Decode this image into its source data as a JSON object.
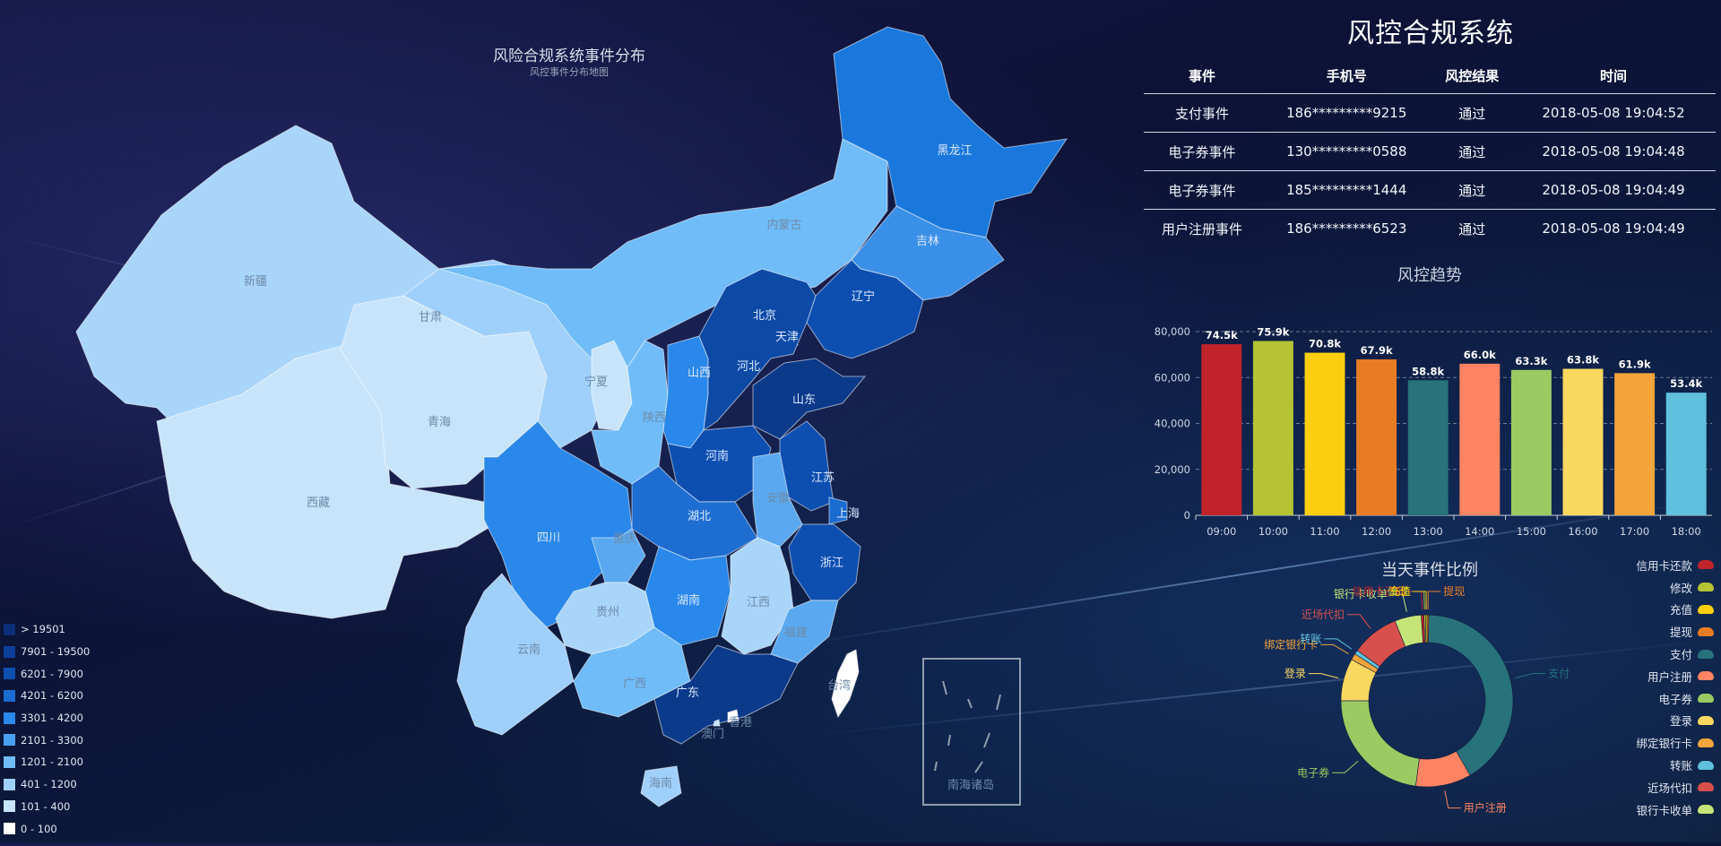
{
  "map": {
    "title": "风险合规系统事件分布",
    "subtitle": "风控事件分布地图",
    "provinces": [
      {
        "name": "新疆",
        "color": "#a9d5fb"
      },
      {
        "name": "西藏",
        "color": "#c7e4fb"
      },
      {
        "name": "青海",
        "color": "#c7e4fb"
      },
      {
        "name": "甘肃",
        "color": "#9fd0fb"
      },
      {
        "name": "内蒙古",
        "color": "#6fbcf8"
      },
      {
        "name": "黑龙江",
        "color": "#1a78dc"
      },
      {
        "name": "吉林",
        "color": "#3a8fe8"
      },
      {
        "name": "辽宁",
        "color": "#0d4fb0"
      },
      {
        "name": "宁夏",
        "color": "#c7e4fb"
      },
      {
        "name": "陕西",
        "color": "#6fbcf8"
      },
      {
        "name": "山西",
        "color": "#2a88ea"
      },
      {
        "name": "北京",
        "color": "#0b3a8a"
      },
      {
        "name": "天津",
        "color": "#1a6cd0"
      },
      {
        "name": "河北",
        "color": "#0d4aa6"
      },
      {
        "name": "山东",
        "color": "#0b3a8a"
      },
      {
        "name": "河南",
        "color": "#0d4fb0"
      },
      {
        "name": "江苏",
        "color": "#0d4fb0"
      },
      {
        "name": "上海",
        "color": "#1a6cd0"
      },
      {
        "name": "安徽",
        "color": "#5aa9f0"
      },
      {
        "name": "湖北",
        "color": "#1e6ed2"
      },
      {
        "name": "浙江",
        "color": "#0d4fb0"
      },
      {
        "name": "四川",
        "color": "#2a88ea"
      },
      {
        "name": "重庆",
        "color": "#5aa9f0"
      },
      {
        "name": "湖南",
        "color": "#2a88ea"
      },
      {
        "name": "江西",
        "color": "#a9d5fb"
      },
      {
        "name": "福建",
        "color": "#5aa9f0"
      },
      {
        "name": "贵州",
        "color": "#a9d5fb"
      },
      {
        "name": "云南",
        "color": "#9fd0fb"
      },
      {
        "name": "广西",
        "color": "#6fbcf8"
      },
      {
        "name": "广东",
        "color": "#0b3a8a"
      },
      {
        "name": "香港",
        "color": "#ffffff"
      },
      {
        "name": "澳门",
        "color": "#c7e4fb"
      },
      {
        "name": "海南",
        "color": "#9fd0fb"
      },
      {
        "name": "台湾",
        "color": "#ffffff"
      },
      {
        "name": "南海诸岛",
        "color": "#ffffff"
      }
    ],
    "legend": [
      {
        "label": "> 19501",
        "color": "#0b2f78"
      },
      {
        "label": "7901 - 19500",
        "color": "#0d3f98"
      },
      {
        "label": "6201 - 7900",
        "color": "#0d4fb0"
      },
      {
        "label": "4201 - 6200",
        "color": "#1a6cd0"
      },
      {
        "label": "3301 - 4200",
        "color": "#2a88ea"
      },
      {
        "label": "2101 - 3300",
        "color": "#4aa0f0"
      },
      {
        "label": "1201 - 2100",
        "color": "#6fbcf8"
      },
      {
        "label": "401 - 1200",
        "color": "#9fd0fb"
      },
      {
        "label": "101 - 400",
        "color": "#c7e4fb"
      },
      {
        "label": "0 - 100",
        "color": "#ffffff"
      }
    ]
  },
  "panel": {
    "title": "风控合规系统"
  },
  "table": {
    "headers": [
      "事件",
      "手机号",
      "风控结果",
      "时间"
    ],
    "rows": [
      [
        "支付事件",
        "186*********9215",
        "通过",
        "2018-05-08 19:04:52"
      ],
      [
        "电子券事件",
        "130*********0588",
        "通过",
        "2018-05-08 19:04:48"
      ],
      [
        "电子券事件",
        "185*********1444",
        "通过",
        "2018-05-08 19:04:49"
      ],
      [
        "用户注册事件",
        "186*********6523",
        "通过",
        "2018-05-08 19:04:49"
      ]
    ]
  },
  "chart_data": [
    {
      "type": "bar",
      "title": "风控趋势",
      "categories": [
        "09:00",
        "10:00",
        "11:00",
        "12:00",
        "13:00",
        "14:00",
        "15:00",
        "16:00",
        "17:00",
        "18:00"
      ],
      "values": [
        74500,
        75900,
        70800,
        67900,
        58800,
        66000,
        63300,
        63800,
        61900,
        53400
      ],
      "value_labels": [
        "74.5k",
        "75.9k",
        "70.8k",
        "67.9k",
        "58.8k",
        "66.0k",
        "63.3k",
        "63.8k",
        "61.9k",
        "53.4k"
      ],
      "colors": [
        "#c1232b",
        "#b5c334",
        "#fcce10",
        "#e87c25",
        "#27727b",
        "#fe8463",
        "#9bca63",
        "#fad860",
        "#f3a43b",
        "#60c0dd"
      ],
      "yticks": [
        "0",
        "20,000",
        "40,000",
        "60,000",
        "80,000"
      ],
      "ylim": [
        0,
        80000
      ]
    },
    {
      "type": "pie",
      "title": "当天事件比例",
      "donut": true,
      "slices": [
        {
          "name": "支付",
          "value": 41.5,
          "color": "#27727b"
        },
        {
          "name": "用户注册",
          "value": 10.5,
          "color": "#fe8463"
        },
        {
          "name": "电子券",
          "value": 23,
          "color": "#9bca63"
        },
        {
          "name": "登录",
          "value": 8,
          "color": "#fad860"
        },
        {
          "name": "绑定银行卡",
          "value": 1.2,
          "color": "#f3a43b"
        },
        {
          "name": "转账",
          "value": 0.8,
          "color": "#60c0dd"
        },
        {
          "name": "近场代扣",
          "value": 9,
          "color": "#d7504b"
        },
        {
          "name": "银行卡收单",
          "value": 5,
          "color": "#c6e579"
        },
        {
          "name": "信用卡还款",
          "value": 0.5,
          "color": "#c1232b"
        },
        {
          "name": "修改",
          "value": 0.3,
          "color": "#b5c334"
        },
        {
          "name": "充值",
          "value": 0.3,
          "color": "#fcce10"
        },
        {
          "name": "提现",
          "value": 0.3,
          "color": "#e87c25"
        }
      ],
      "legend_order": [
        "信用卡还款",
        "修改",
        "充值",
        "提现",
        "支付",
        "用户注册",
        "电子券",
        "登录",
        "绑定银行卡",
        "转账",
        "近场代扣",
        "银行卡收单"
      ]
    }
  ]
}
